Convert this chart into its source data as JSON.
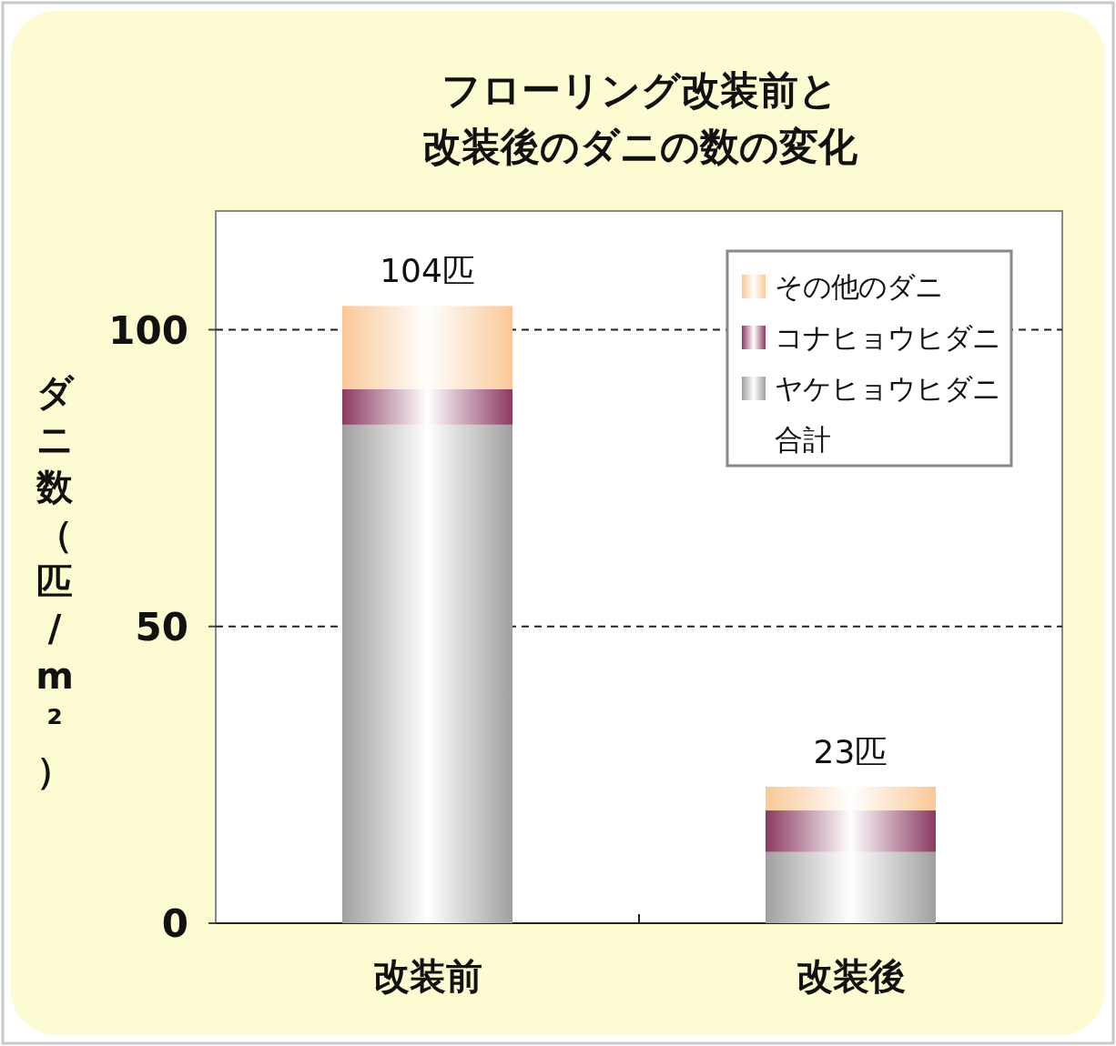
{
  "chart_data": {
    "type": "bar",
    "title": "フローリング改装前と改装後のダニの数の変化",
    "ylabel": "ダニ数（匹/m²）",
    "categories": [
      "改装前",
      "改装後"
    ],
    "stacked": true,
    "series": [
      {
        "name": "ヤケヒョウヒダニ",
        "color": "#a0a0a0",
        "values": [
          84,
          12
        ]
      },
      {
        "name": "コナヒョウヒダニ",
        "color": "#8b3a62",
        "values": [
          6,
          7
        ]
      },
      {
        "name": "その他のダニ",
        "color": "#f9c898",
        "values": [
          14,
          4
        ]
      }
    ],
    "totals": [
      "104匹",
      "23匹"
    ],
    "annotations": [
      "合計"
    ],
    "ylim": [
      0,
      120
    ],
    "yticks": [
      0,
      50,
      100
    ],
    "grid": "y",
    "legend": "top right"
  }
}
